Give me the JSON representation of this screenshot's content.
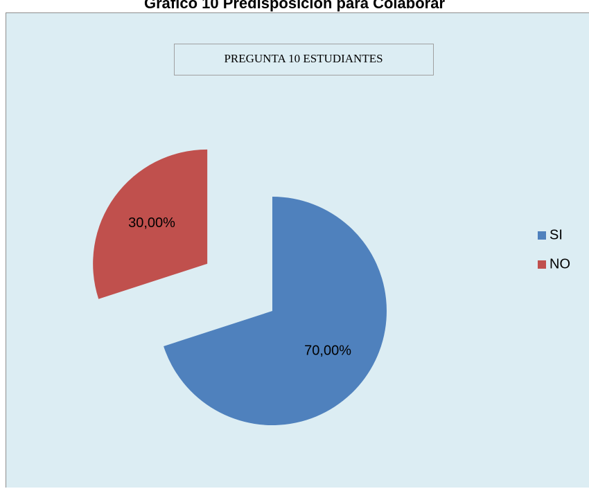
{
  "chart_data": {
    "type": "pie",
    "title": "Gráfico 10 Predisposición para Colaborar",
    "subtitle": "PREGUNTA 10 ESTUDIANTES",
    "categories": [
      "SI",
      "NO"
    ],
    "values": [
      70,
      30
    ],
    "value_labels": [
      "70,00%",
      "30,00%"
    ],
    "colors": [
      "#4f81bd",
      "#c0504d"
    ],
    "legend": "right"
  }
}
